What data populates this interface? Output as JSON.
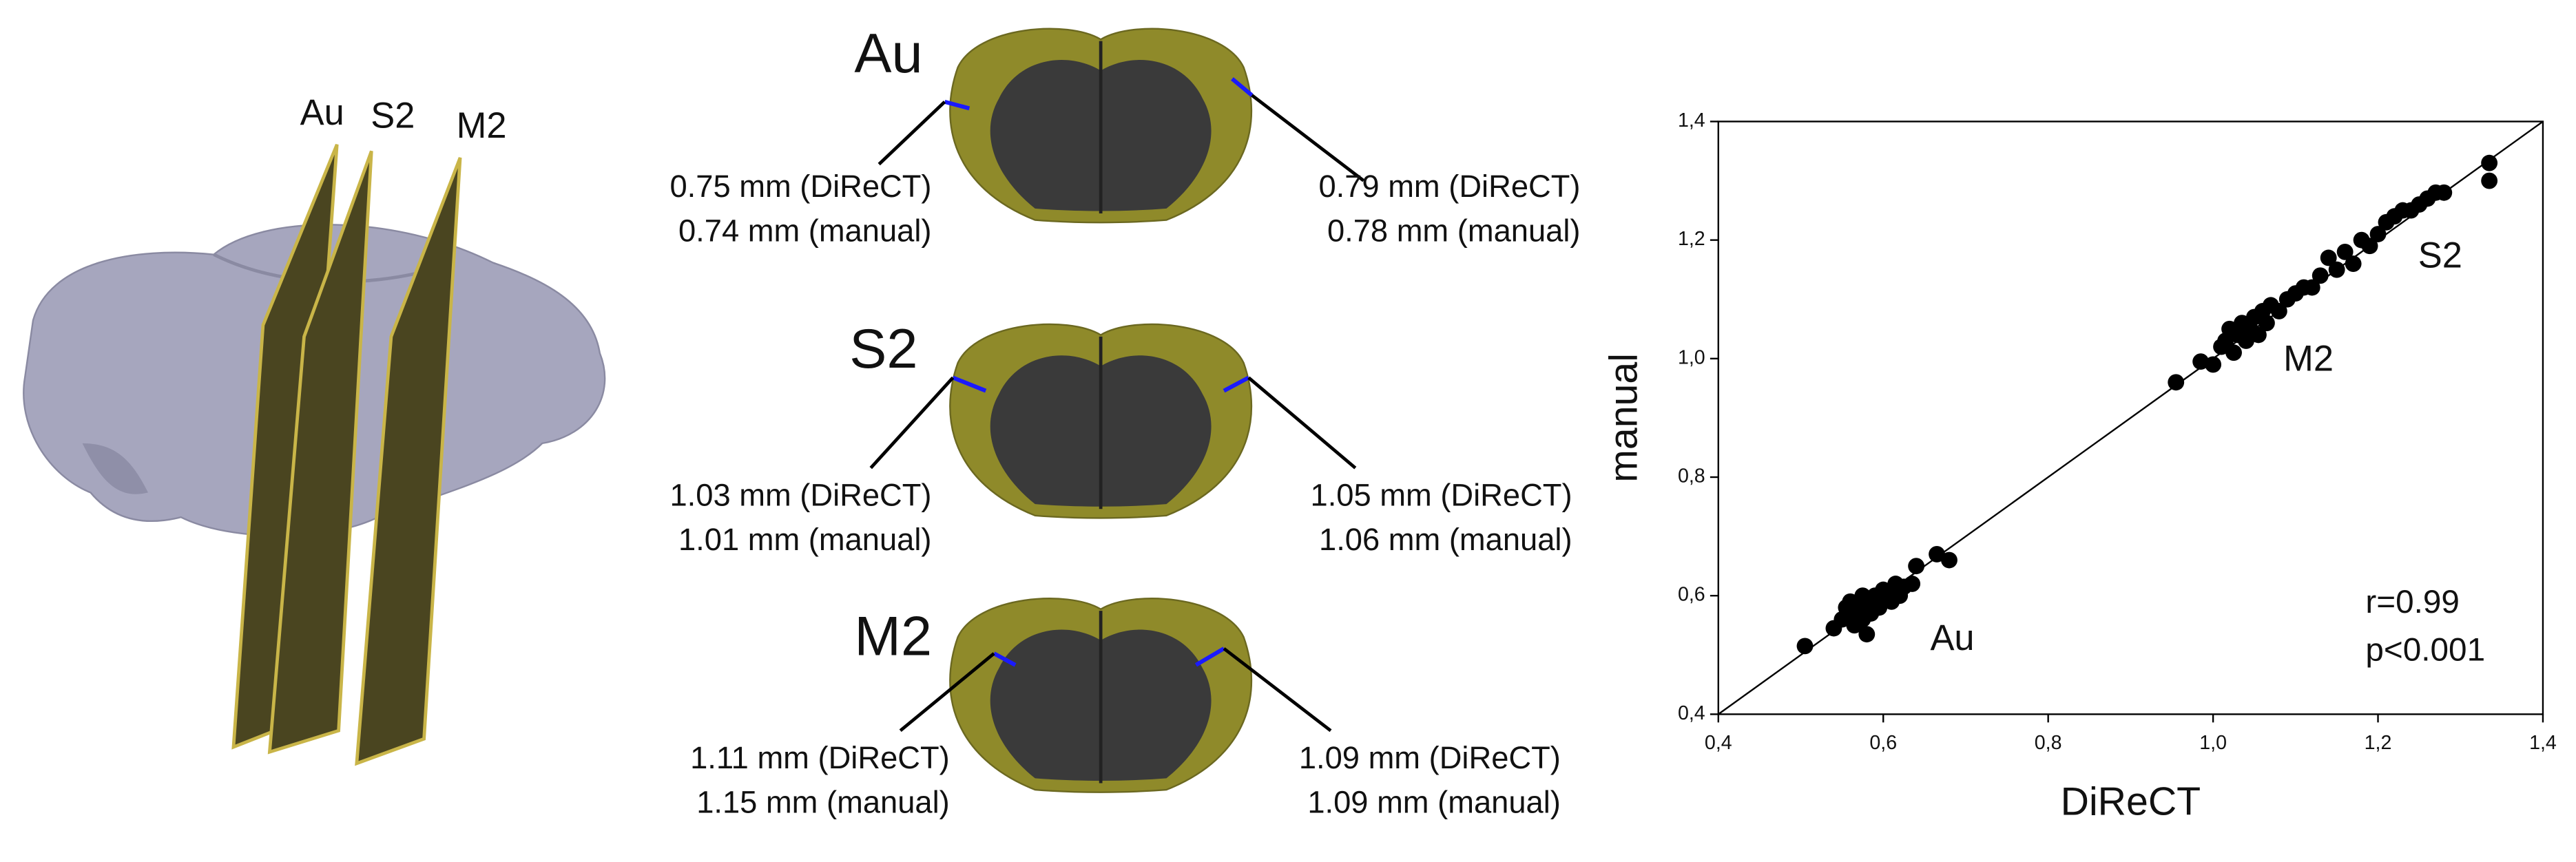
{
  "panels": {
    "planes": [
      "Au",
      "S2",
      "M2"
    ],
    "slices": [
      {
        "label": "Au",
        "left": [
          "0.75 mm (DiReCT)",
          "0.74 mm (manual)"
        ],
        "right": [
          "0.79 mm (DiReCT)",
          "0.78 mm (manual)"
        ]
      },
      {
        "label": "S2",
        "left": [
          "1.03 mm (DiReCT)",
          "1.01 mm (manual)"
        ],
        "right": [
          "1.05 mm (DiReCT)",
          "1.06 mm (manual)"
        ]
      },
      {
        "label": "M2",
        "left": [
          "1.11 mm (DiReCT)",
          "1.15 mm (manual)"
        ],
        "right": [
          "1.09 mm (DiReCT)",
          "1.09 mm (manual)"
        ]
      }
    ]
  },
  "chart_data": {
    "type": "scatter",
    "xlabel": "DiReCT",
    "ylabel": "manual",
    "color": "#000000",
    "xlim": [
      0.4,
      1.4
    ],
    "ylim": [
      0.4,
      1.4
    ],
    "xticks": [
      {
        "value": 0.4,
        "label": "0,4"
      },
      {
        "value": 0.6,
        "label": "0,6"
      },
      {
        "value": 0.8,
        "label": "0,8"
      },
      {
        "value": 1.0,
        "label": "1,0"
      },
      {
        "value": 1.2,
        "label": "1,2"
      },
      {
        "value": 1.4,
        "label": "1,4"
      }
    ],
    "yticks": [
      {
        "value": 0.4,
        "label": "0,4"
      },
      {
        "value": 0.6,
        "label": "0,6"
      },
      {
        "value": 0.8,
        "label": "0,8"
      },
      {
        "value": 1.0,
        "label": "1,0"
      },
      {
        "value": 1.2,
        "label": "1,2"
      },
      {
        "value": 1.4,
        "label": "1,4"
      }
    ],
    "identity_line": true,
    "annotations": [
      "Au",
      "M2",
      "S2",
      "r=0.99",
      "p<0.001"
    ],
    "x": [
      0.505,
      0.54,
      0.55,
      0.555,
      0.56,
      0.56,
      0.565,
      0.57,
      0.575,
      0.575,
      0.58,
      0.58,
      0.585,
      0.59,
      0.595,
      0.6,
      0.605,
      0.61,
      0.615,
      0.62,
      0.625,
      0.635,
      0.64,
      0.665,
      0.68,
      0.955,
      0.985,
      1.0,
      1.01,
      1.015,
      1.02,
      1.025,
      1.03,
      1.035,
      1.04,
      1.045,
      1.05,
      1.055,
      1.06,
      1.065,
      1.07,
      1.08,
      1.09,
      1.1,
      1.11,
      1.12,
      1.13,
      1.14,
      1.15,
      1.16,
      1.17,
      1.18,
      1.19,
      1.2,
      1.21,
      1.22,
      1.23,
      1.24,
      1.25,
      1.26,
      1.27,
      1.28,
      1.335,
      1.335
    ],
    "values": [
      0.515,
      0.545,
      0.56,
      0.58,
      0.57,
      0.59,
      0.55,
      0.575,
      0.56,
      0.6,
      0.585,
      0.535,
      0.57,
      0.6,
      0.58,
      0.61,
      0.6,
      0.59,
      0.62,
      0.6,
      0.615,
      0.62,
      0.65,
      0.67,
      0.66,
      0.96,
      0.995,
      0.99,
      1.02,
      1.03,
      1.05,
      1.01,
      1.04,
      1.06,
      1.03,
      1.05,
      1.07,
      1.04,
      1.08,
      1.06,
      1.09,
      1.08,
      1.1,
      1.11,
      1.12,
      1.12,
      1.14,
      1.17,
      1.15,
      1.18,
      1.16,
      1.2,
      1.19,
      1.21,
      1.23,
      1.24,
      1.25,
      1.25,
      1.26,
      1.27,
      1.28,
      1.28,
      1.33,
      1.3
    ]
  }
}
